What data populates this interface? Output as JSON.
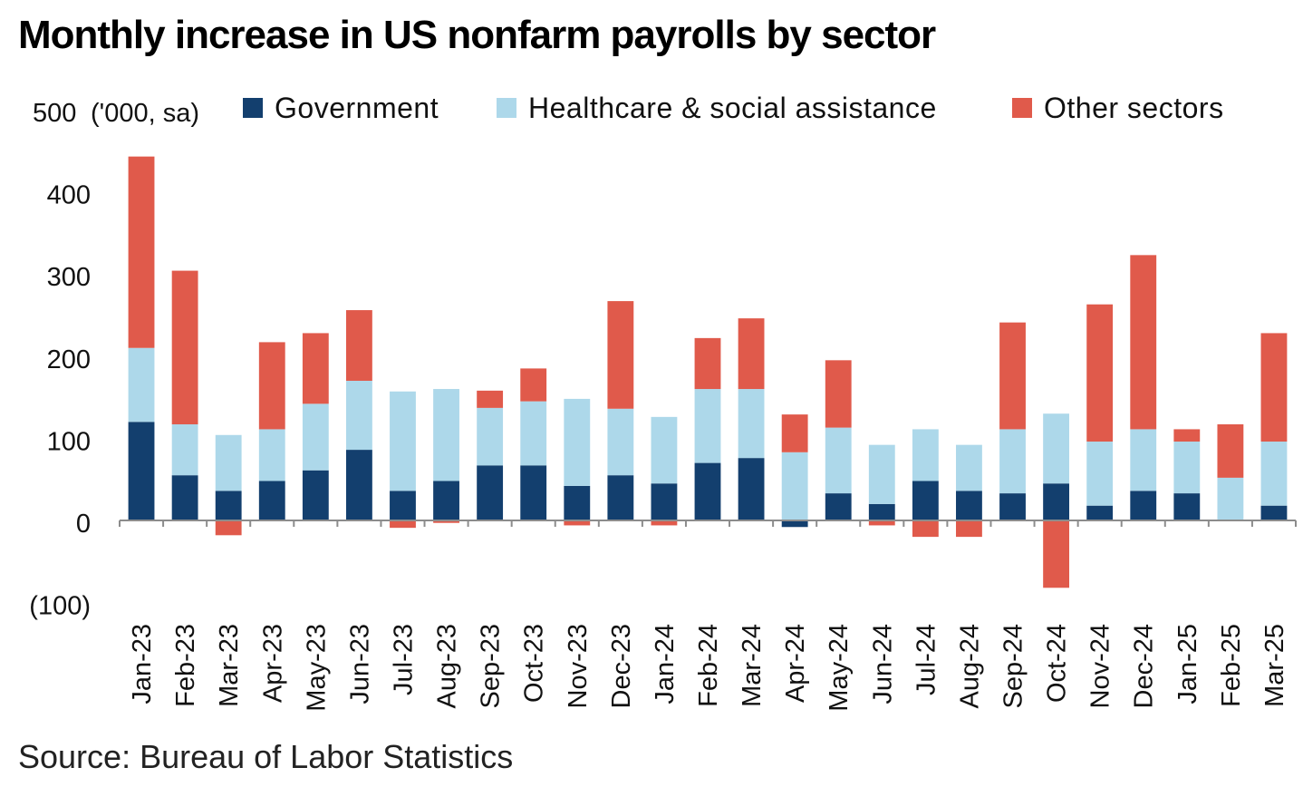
{
  "title": "Monthly increase in US nonfarm payrolls by sector",
  "source": "Source: Bureau of Labor Statistics",
  "chart_data": {
    "type": "bar",
    "stacked": true,
    "title": "Monthly increase in US nonfarm payrolls by sector",
    "unit_label": "('000, sa)",
    "ylim": [
      -100,
      500
    ],
    "yticks": [
      {
        "value": 500,
        "label": "500"
      },
      {
        "value": 400,
        "label": "400"
      },
      {
        "value": 300,
        "label": "300"
      },
      {
        "value": 200,
        "label": "200"
      },
      {
        "value": 100,
        "label": "100"
      },
      {
        "value": 0,
        "label": "0"
      },
      {
        "value": -100,
        "label": "(100)"
      }
    ],
    "grid": false,
    "legend_position": "top",
    "categories": [
      "Jan-23",
      "Feb-23",
      "Mar-23",
      "Apr-23",
      "May-23",
      "Jun-23",
      "Jul-23",
      "Aug-23",
      "Sep-23",
      "Oct-23",
      "Nov-23",
      "Dec-23",
      "Jan-24",
      "Feb-24",
      "Mar-24",
      "Apr-24",
      "May-24",
      "Jun-24",
      "Jul-24",
      "Aug-24",
      "Sep-24",
      "Oct-24",
      "Nov-24",
      "Dec-24",
      "Jan-25",
      "Feb-25",
      "Mar-25"
    ],
    "series": [
      {
        "name": "Government",
        "color": "#133f6e",
        "values": [
          120,
          55,
          36,
          48,
          61,
          86,
          36,
          48,
          67,
          67,
          42,
          55,
          45,
          70,
          76,
          -8,
          33,
          20,
          48,
          36,
          33,
          45,
          18,
          36,
          33,
          0,
          18
        ]
      },
      {
        "name": "Healthcare & social assistance",
        "color": "#add8ea",
        "values": [
          90,
          62,
          68,
          63,
          81,
          84,
          121,
          112,
          70,
          78,
          106,
          81,
          81,
          90,
          84,
          83,
          80,
          72,
          63,
          56,
          78,
          85,
          78,
          75,
          63,
          52,
          78
        ]
      },
      {
        "name": "Other sectors",
        "color": "#e05a4b",
        "values": [
          233,
          187,
          -18,
          106,
          86,
          86,
          -9,
          -3,
          21,
          40,
          -6,
          131,
          -6,
          62,
          86,
          46,
          82,
          -6,
          -20,
          -20,
          130,
          -82,
          167,
          212,
          15,
          65,
          132
        ]
      }
    ]
  }
}
